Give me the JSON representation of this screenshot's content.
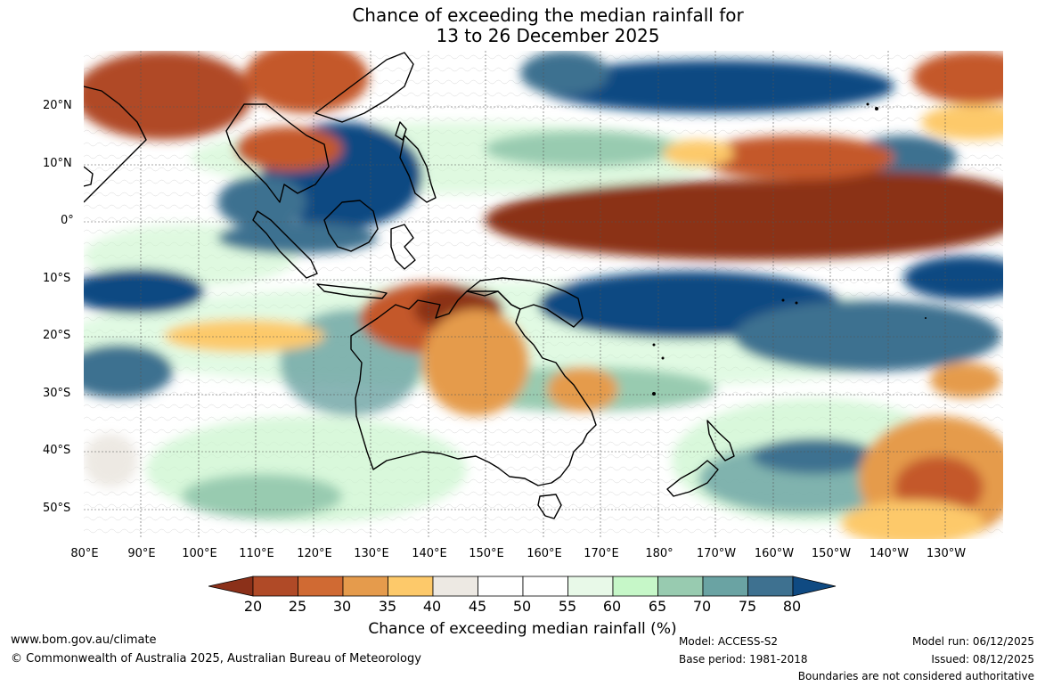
{
  "title": {
    "line1": "Chance of exceeding the median rainfall for",
    "line2": "13 to 26 December 2025"
  },
  "map": {
    "lat_labels": [
      "20°N",
      "10°N",
      "0°",
      "10°S",
      "20°S",
      "30°S",
      "40°S",
      "50°S"
    ],
    "lon_labels": [
      "80°E",
      "90°E",
      "100°E",
      "110°E",
      "120°E",
      "130°E",
      "140°E",
      "150°E",
      "160°E",
      "170°E",
      "180°",
      "170°W",
      "160°W",
      "150°W",
      "140°W",
      "130°W"
    ],
    "colors": {
      "very_dry": "#8b3019",
      "dry": "#c4582a",
      "moderately_dry": "#f7c56a",
      "neutral": "#ffffff",
      "light_wet": "#c9f5cc",
      "wet": "#6aa3a3",
      "very_wet": "#0f4a82"
    }
  },
  "colorbar": {
    "ticks": [
      "20",
      "25",
      "30",
      "35",
      "40",
      "45",
      "50",
      "55",
      "60",
      "65",
      "70",
      "75",
      "80"
    ],
    "colors": [
      "#8b3019",
      "#b04a27",
      "#d06a33",
      "#e59b4c",
      "#fdc96a",
      "#ede9e3",
      "#ffffff",
      "#ffffff",
      "#e8f9e8",
      "#c6f7c8",
      "#98cbb0",
      "#6aa3a3",
      "#3e7190",
      "#0f4a82"
    ],
    "label": "Chance of exceeding median rainfall (%)"
  },
  "footer": {
    "website": "www.bom.gov.au/climate",
    "copyright": "© Commonwealth of Australia 2025, Australian Bureau of Meteorology",
    "model": "Model: ACCESS-S2",
    "base_period": "Base period: 1981-2018",
    "model_run": "Model run: 06/12/2025",
    "issued": "Issued: 08/12/2025",
    "disclaimer": "Boundaries are not considered authoritative"
  }
}
